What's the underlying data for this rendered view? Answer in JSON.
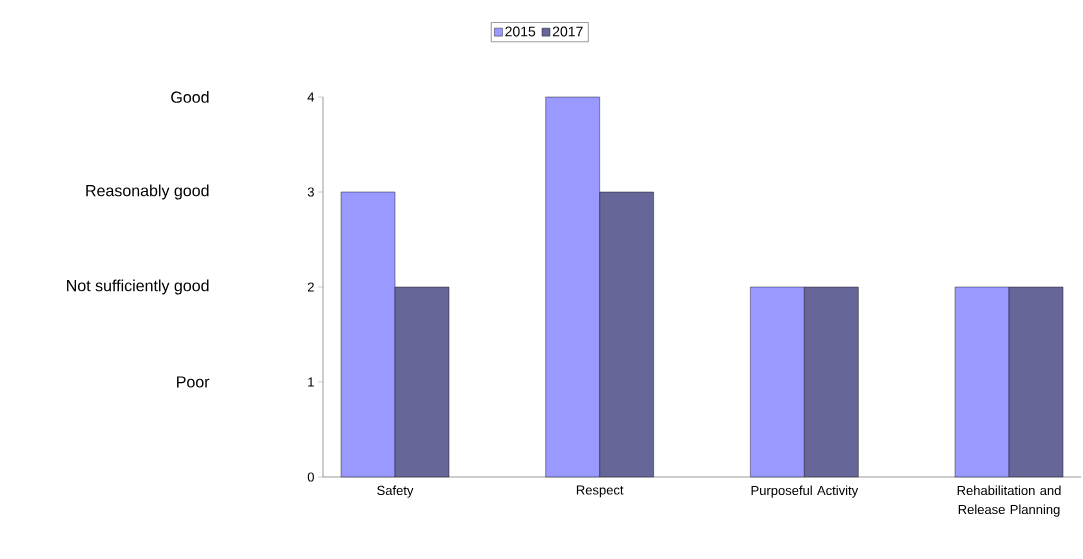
{
  "chart_data": {
    "type": "bar",
    "categories": [
      "Safety",
      "Respect",
      "Purposeful Activity",
      "Rehabilitation and Release Planning"
    ],
    "series": [
      {
        "name": "2015",
        "color": "#9999ff",
        "values": [
          3,
          4,
          2,
          2
        ]
      },
      {
        "name": "2017",
        "color": "#666699",
        "values": [
          2,
          3,
          2,
          2
        ]
      }
    ],
    "ylim": [
      0,
      4
    ],
    "yticks": [
      0,
      1,
      2,
      3,
      4
    ],
    "annotations": [
      "Good",
      "Reasonably good",
      "Not sufficiently good",
      "Poor"
    ],
    "legend": "top",
    "grid": false
  }
}
